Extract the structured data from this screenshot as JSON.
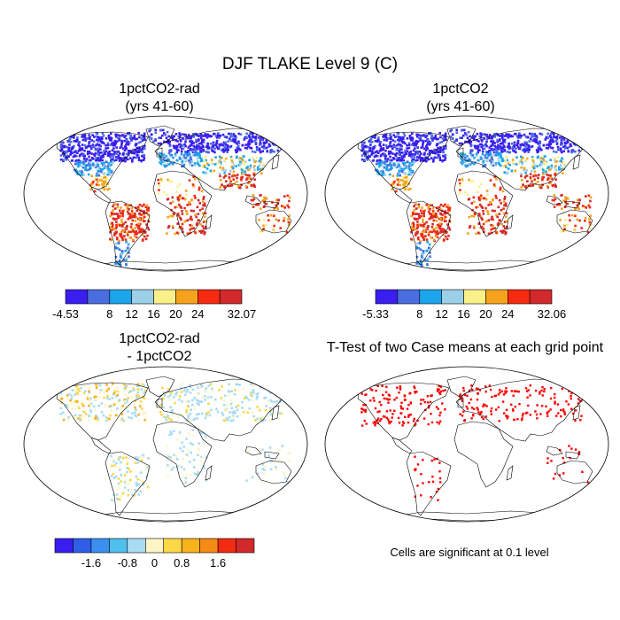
{
  "figure": {
    "title": "DJF TLAKE Level 9 (C)",
    "footnote": "Cells are significant at 0.1 level"
  },
  "colors": {
    "temperature_scale": [
      "#3a1eef",
      "#4a6ee0",
      "#1ca5ea",
      "#9ccfe8",
      "#faf08a",
      "#f5a31c",
      "#f62b12",
      "#d1292c"
    ],
    "difference_scale": [
      "#3a1eef",
      "#2f5fe8",
      "#3a8ff0",
      "#4fbfec",
      "#a9dcf2",
      "#fcf6c4",
      "#fbd848",
      "#f7b21c",
      "#f58a14",
      "#f22b12",
      "#d1292c"
    ],
    "significance": "#ff0000",
    "coastline": "#000000"
  },
  "panels": [
    {
      "id": "1pctCO2-rad",
      "title_line1": "1pctCO2-rad",
      "title_line2": "(yrs 41-60)",
      "colorbar_labels": [
        "-4.53",
        "8",
        "12",
        "16",
        "20",
        "24",
        "32.07"
      ]
    },
    {
      "id": "1pctCO2",
      "title_line1": "1pctCO2",
      "title_line2": "(yrs 41-60)",
      "colorbar_labels": [
        "-5.33",
        "8",
        "12",
        "16",
        "20",
        "24",
        "32.06"
      ]
    },
    {
      "id": "difference",
      "title_line1": "1pctCO2-rad",
      "title_line2": "- 1pctCO2",
      "colorbar_labels": [
        "-1.6",
        "-0.8",
        "0",
        "0.8",
        "1.6"
      ]
    },
    {
      "id": "ttest",
      "title_line1": "T-Test of two Case means at each grid point"
    }
  ]
}
